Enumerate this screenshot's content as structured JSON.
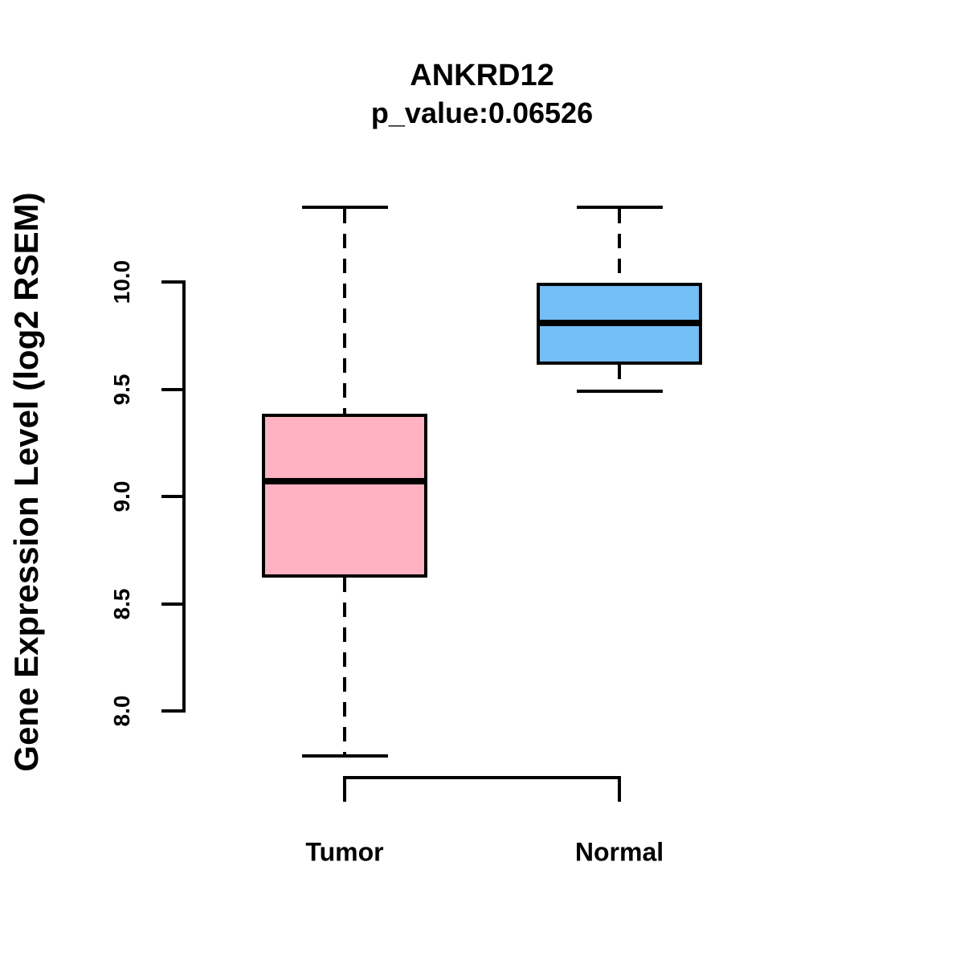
{
  "chart_data": {
    "type": "boxplot",
    "title": "ANKRD12",
    "subtitle": "p_value:0.06526",
    "ylabel": "Gene Expression Level (log2 RSEM)",
    "xlabel": "",
    "ylim": [
      8.0,
      10.0
    ],
    "ytick_labels": [
      "8.0",
      "8.5",
      "9.0",
      "9.5",
      "10.0"
    ],
    "ytick_values": [
      8.0,
      8.5,
      9.0,
      9.5,
      10.0
    ],
    "grid": false,
    "legend": "none",
    "categories": [
      "Tumor",
      "Normal"
    ],
    "groups": [
      {
        "name": "Tumor",
        "color": "#FFB3C2",
        "stats": {
          "lower_whisker": 7.79,
          "q1": 8.63,
          "median": 9.07,
          "q3": 9.38,
          "upper_whisker": 10.35
        }
      },
      {
        "name": "Normal",
        "color": "#74BEF6",
        "stats": {
          "lower_whisker": 9.49,
          "q1": 9.62,
          "median": 9.81,
          "q3": 9.99,
          "upper_whisker": 10.35
        }
      }
    ],
    "colors": {
      "tumor_fill": "#FFB3C2",
      "normal_fill": "#74BEF6",
      "line": "#000000",
      "background": "#FFFFFF"
    }
  }
}
